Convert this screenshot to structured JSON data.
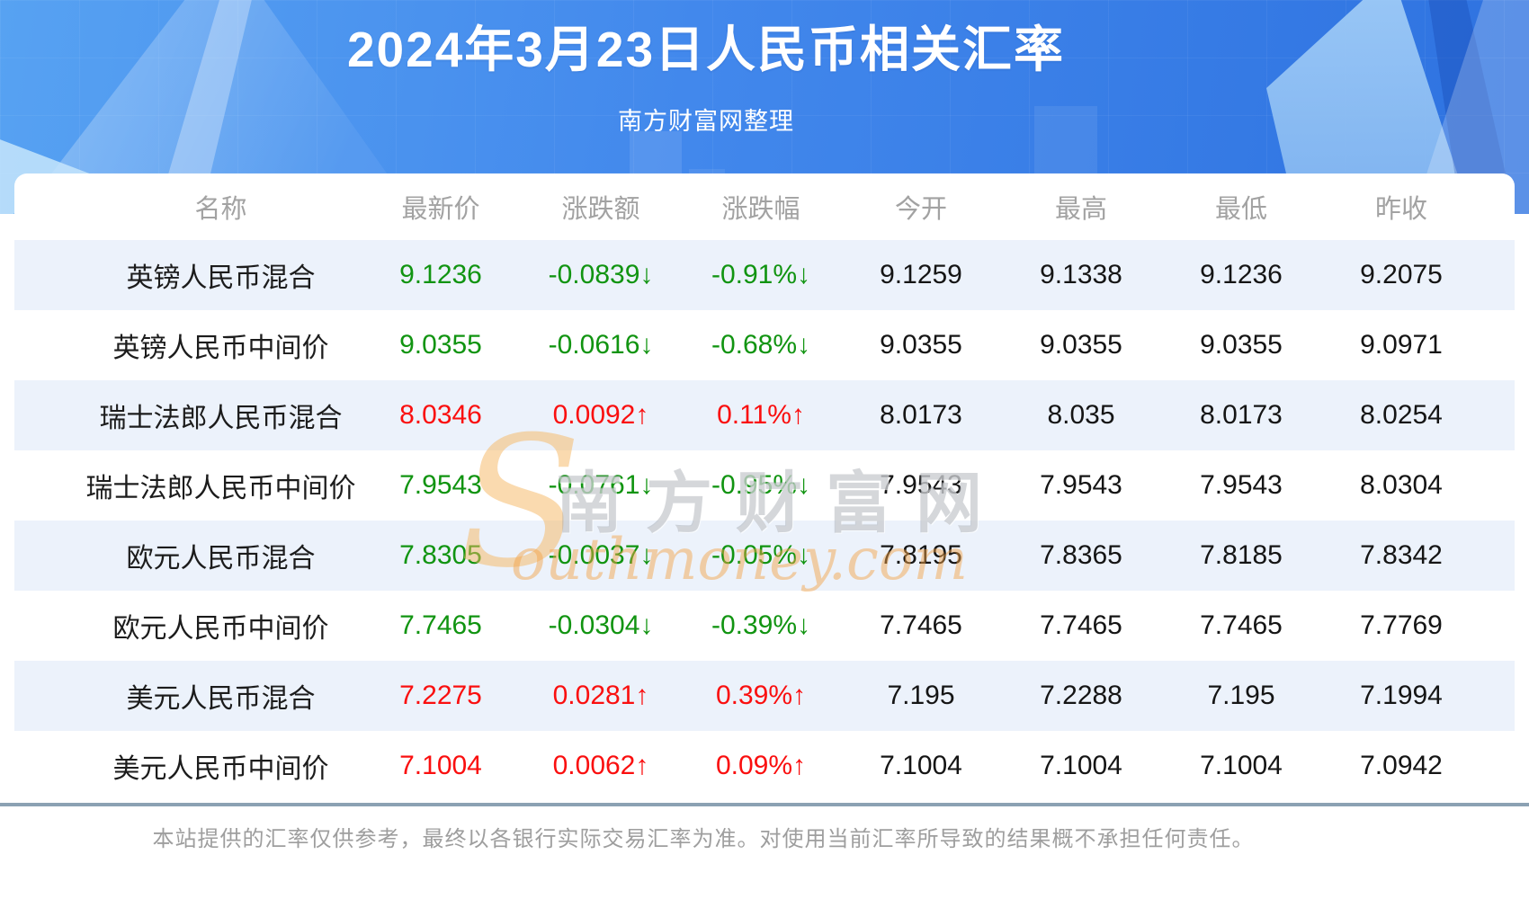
{
  "chart_data": {
    "type": "table",
    "title": "2024年3月23日人民币相关汇率",
    "source_note": "南方财富网整理",
    "columns": [
      "名称",
      "最新价",
      "涨跌额",
      "涨跌幅",
      "今开",
      "最高",
      "最低",
      "昨收"
    ],
    "rows": [
      {
        "name": "英镑人民币混合",
        "latest": "9.1236",
        "change": "-0.0839↓",
        "change_pct": "-0.91%↓",
        "open": "9.1259",
        "high": "9.1338",
        "low": "9.1236",
        "prev_close": "9.2075",
        "trend": "down"
      },
      {
        "name": "英镑人民币中间价",
        "latest": "9.0355",
        "change": "-0.0616↓",
        "change_pct": "-0.68%↓",
        "open": "9.0355",
        "high": "9.0355",
        "low": "9.0355",
        "prev_close": "9.0971",
        "trend": "down"
      },
      {
        "name": "瑞士法郎人民币混合",
        "latest": "8.0346",
        "change": "0.0092↑",
        "change_pct": "0.11%↑",
        "open": "8.0173",
        "high": "8.035",
        "low": "8.0173",
        "prev_close": "8.0254",
        "trend": "up"
      },
      {
        "name": "瑞士法郎人民币中间价",
        "latest": "7.9543",
        "change": "-0.0761↓",
        "change_pct": "-0.95%↓",
        "open": "7.9543",
        "high": "7.9543",
        "low": "7.9543",
        "prev_close": "8.0304",
        "trend": "down"
      },
      {
        "name": "欧元人民币混合",
        "latest": "7.8305",
        "change": "-0.0037↓",
        "change_pct": "-0.05%↓",
        "open": "7.8195",
        "high": "7.8365",
        "low": "7.8185",
        "prev_close": "7.8342",
        "trend": "down"
      },
      {
        "name": "欧元人民币中间价",
        "latest": "7.7465",
        "change": "-0.0304↓",
        "change_pct": "-0.39%↓",
        "open": "7.7465",
        "high": "7.7465",
        "low": "7.7465",
        "prev_close": "7.7769",
        "trend": "down"
      },
      {
        "name": "美元人民币混合",
        "latest": "7.2275",
        "change": "0.0281↑",
        "change_pct": "0.39%↑",
        "open": "7.195",
        "high": "7.2288",
        "low": "7.195",
        "prev_close": "7.1994",
        "trend": "up"
      },
      {
        "name": "美元人民币中间价",
        "latest": "7.1004",
        "change": "0.0062↑",
        "change_pct": "0.09%↑",
        "open": "7.1004",
        "high": "7.1004",
        "low": "7.1004",
        "prev_close": "7.0942",
        "trend": "up"
      }
    ]
  },
  "watermark": {
    "initial": "S",
    "cn": "南方财富网",
    "en_rest": "outhmoney.com"
  },
  "footer": {
    "disclaimer": "本站提供的汇率仅供参考，最终以各银行实际交易汇率为准。对使用当前汇率所导致的结果概不承担任何责任。"
  },
  "colors": {
    "up_red": "#fa0f0f",
    "down_green": "#119411",
    "hero_blue": "#3f85ea",
    "row_alt_bg": "#ecf2fb",
    "header_text_gray": "#a2a2a2",
    "divider_blue_gray": "#8ba1b3",
    "watermark_orange": "#f2a248"
  }
}
